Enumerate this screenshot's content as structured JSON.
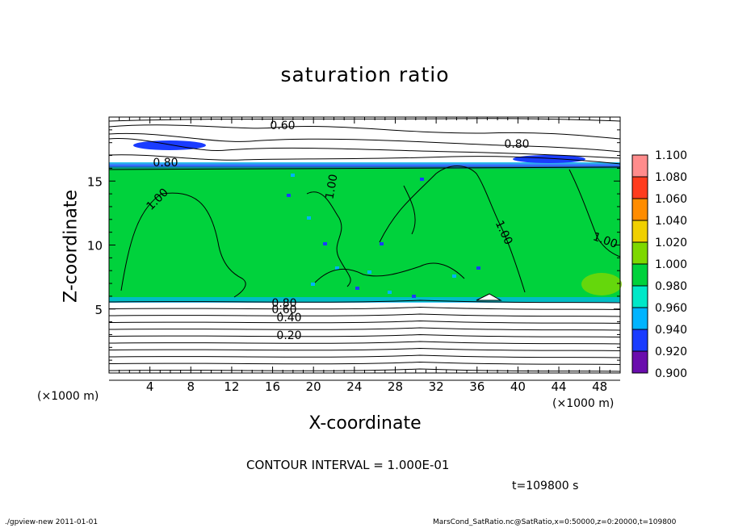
{
  "chart_data": {
    "type": "heatmap",
    "title": "saturation ratio",
    "xlabel": "X-coordinate",
    "ylabel": "Z-coordinate",
    "x_unit_label": "(×1000 m)",
    "y_unit_label": "(×1000 m)",
    "xlim": [
      0,
      50
    ],
    "ylim": [
      0,
      20
    ],
    "x_ticks": [
      4,
      8,
      12,
      16,
      20,
      24,
      28,
      32,
      36,
      40,
      44,
      48
    ],
    "y_ticks": [
      5,
      10,
      15
    ],
    "colorbar": {
      "levels": [
        "0.900",
        "0.920",
        "0.940",
        "0.960",
        "0.980",
        "1.000",
        "1.020",
        "1.040",
        "1.060",
        "1.080",
        "1.100"
      ],
      "colors": [
        "#6a0dad",
        "#0000a0",
        "#1a3cff",
        "#00b4ff",
        "#00e8c8",
        "#00d23c",
        "#7ed800",
        "#f0d000",
        "#ff8c00",
        "#ff3c1e",
        "#ff8c8c"
      ]
    },
    "contour_labels": [
      "0.60",
      "0.80",
      "0.80",
      "1.00",
      "1.00",
      "1.00",
      "1.00",
      "0.80",
      "0.60",
      "0.40",
      "0.20"
    ],
    "contour_interval_text": "CONTOUR INTERVAL = 1.000E-01",
    "time_text": "t=109800 s"
  },
  "footer": {
    "left": "./gpview-new   2011-01-01",
    "right": "MarsCond_SatRatio.nc@SatRatio,x=0:50000,z=0:20000,t=109800"
  }
}
